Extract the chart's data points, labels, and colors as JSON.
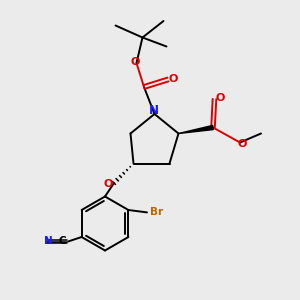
{
  "bg_color": "#ebebeb",
  "fig_size": [
    3.0,
    3.0
  ],
  "dpi": 100,
  "atom_colors": {
    "C": "#000000",
    "N": "#1a1aff",
    "O": "#dd0000",
    "Br": "#bb6600"
  },
  "bond_color": "#000000",
  "lw": 1.4,
  "lw_thin": 1.1
}
